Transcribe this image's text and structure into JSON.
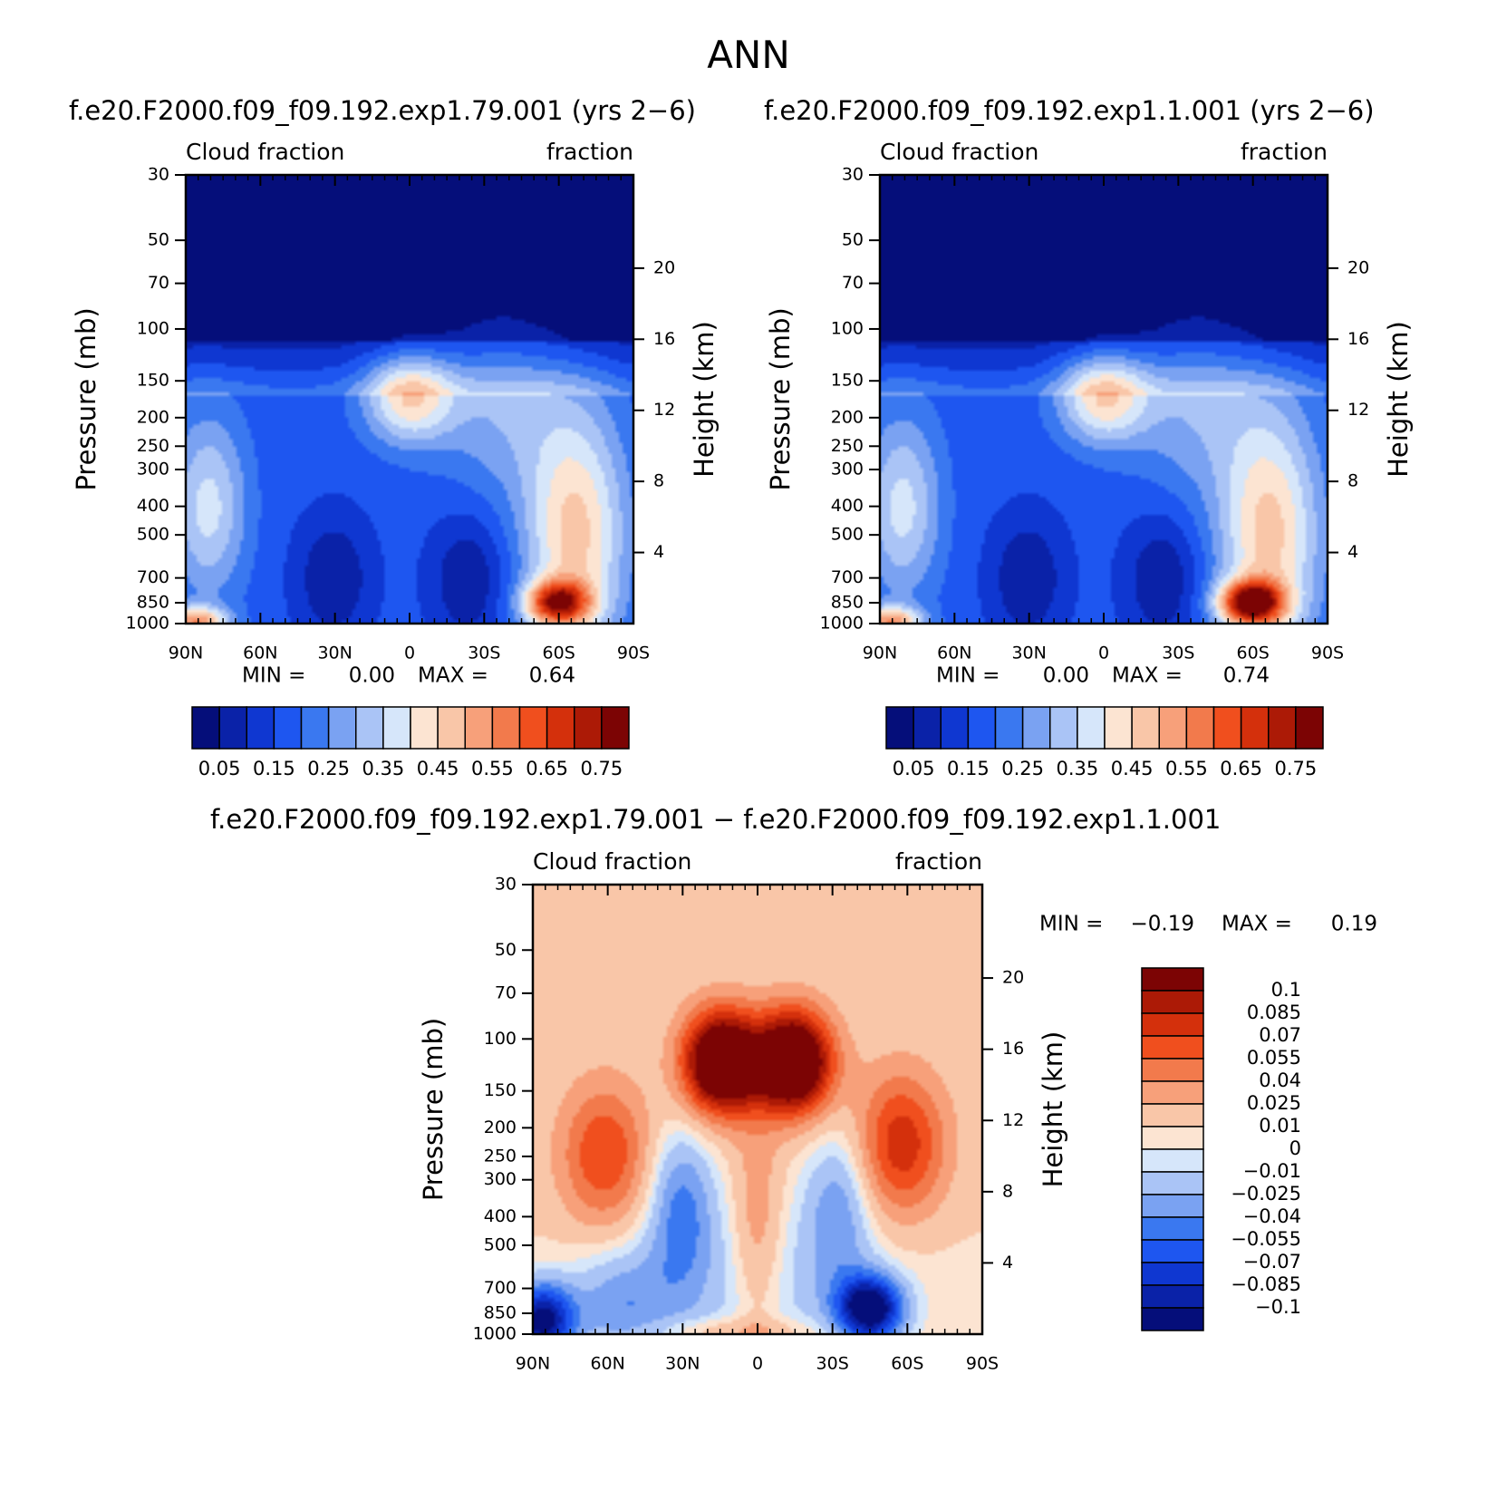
{
  "figure": {
    "title": "ANN"
  },
  "chart_data": [
    {
      "type": "heatmap",
      "id": "panel-1",
      "title": "f.e20.F2000.f09_f09.192.exp1.79.001 (yrs 2−6)",
      "left_label": "Cloud fraction",
      "right_label": "fraction",
      "ylabel": "Pressure (mb)",
      "y2label": "Height (km)",
      "x_ticks": [
        "90N",
        "60N",
        "30N",
        "0",
        "30S",
        "60S",
        "90S"
      ],
      "y_ticks": [
        "30",
        "50",
        "70",
        "100",
        "150",
        "200",
        "250",
        "300",
        "400",
        "500",
        "700",
        "850",
        "1000"
      ],
      "y2_ticks": [
        "20",
        "16",
        "12",
        "8",
        "4"
      ],
      "ylim": [
        30,
        1000
      ],
      "y_scale": "log",
      "min_label": "MIN =",
      "min_value": "0.00",
      "max_label": "MAX =",
      "max_value": "0.64",
      "colorbar_labels": [
        "0.05",
        "0.15",
        "0.25",
        "0.35",
        "0.45",
        "0.55",
        "0.65",
        "0.75"
      ],
      "colorbar_colors": [
        "#050e7a",
        "#0a22a8",
        "#0f37d1",
        "#1e56f0",
        "#3a78f0",
        "#7aa2f2",
        "#aac4f6",
        "#d6e6fa",
        "#fce4d2",
        "#f9c6a8",
        "#f7a07a",
        "#f27a4c",
        "#f04f1e",
        "#d4300c",
        "#ac1a06",
        "#7c0404"
      ]
    },
    {
      "type": "heatmap",
      "id": "panel-2",
      "title": "f.e20.F2000.f09_f09.192.exp1.1.001 (yrs 2−6)",
      "left_label": "Cloud fraction",
      "right_label": "fraction",
      "ylabel": "Pressure (mb)",
      "y2label": "Height (km)",
      "x_ticks": [
        "90N",
        "60N",
        "30N",
        "0",
        "30S",
        "60S",
        "90S"
      ],
      "y_ticks": [
        "30",
        "50",
        "70",
        "100",
        "150",
        "200",
        "250",
        "300",
        "400",
        "500",
        "700",
        "850",
        "1000"
      ],
      "y2_ticks": [
        "20",
        "16",
        "12",
        "8",
        "4"
      ],
      "ylim": [
        30,
        1000
      ],
      "y_scale": "log",
      "min_label": "MIN =",
      "min_value": "0.00",
      "max_label": "MAX =",
      "max_value": "0.74",
      "colorbar_labels": [
        "0.05",
        "0.15",
        "0.25",
        "0.35",
        "0.45",
        "0.55",
        "0.65",
        "0.75"
      ],
      "colorbar_colors": [
        "#050e7a",
        "#0a22a8",
        "#0f37d1",
        "#1e56f0",
        "#3a78f0",
        "#7aa2f2",
        "#aac4f6",
        "#d6e6fa",
        "#fce4d2",
        "#f9c6a8",
        "#f7a07a",
        "#f27a4c",
        "#f04f1e",
        "#d4300c",
        "#ac1a06",
        "#7c0404"
      ]
    },
    {
      "type": "heatmap",
      "id": "panel-diff",
      "title": "f.e20.F2000.f09_f09.192.exp1.79.001 − f.e20.F2000.f09_f09.192.exp1.1.001",
      "left_label": "Cloud fraction",
      "right_label": "fraction",
      "ylabel": "Pressure (mb)",
      "y2label": "Height (km)",
      "x_ticks": [
        "90N",
        "60N",
        "30N",
        "0",
        "30S",
        "60S",
        "90S"
      ],
      "y_ticks": [
        "30",
        "50",
        "70",
        "100",
        "150",
        "200",
        "250",
        "300",
        "400",
        "500",
        "700",
        "850",
        "1000"
      ],
      "y2_ticks": [
        "20",
        "16",
        "12",
        "8",
        "4"
      ],
      "ylim": [
        30,
        1000
      ],
      "y_scale": "log",
      "min_label": "MIN =",
      "min_value": "−0.19",
      "max_label": "MAX =",
      "max_value": "0.19",
      "colorbar_labels": [
        "0.1",
        "0.085",
        "0.07",
        "0.055",
        "0.04",
        "0.025",
        "0.01",
        "0",
        "−0.01",
        "−0.025",
        "−0.04",
        "−0.055",
        "−0.07",
        "−0.085",
        "−0.1"
      ],
      "colorbar_colors": [
        "#7c0404",
        "#ac1a06",
        "#d4300c",
        "#f04f1e",
        "#f27a4c",
        "#f7a07a",
        "#f9c6a8",
        "#fce4d2",
        "#d6e6fa",
        "#aac4f6",
        "#7aa2f2",
        "#3a78f0",
        "#1e56f0",
        "#0f37d1",
        "#0a22a8",
        "#050e7a"
      ]
    }
  ]
}
